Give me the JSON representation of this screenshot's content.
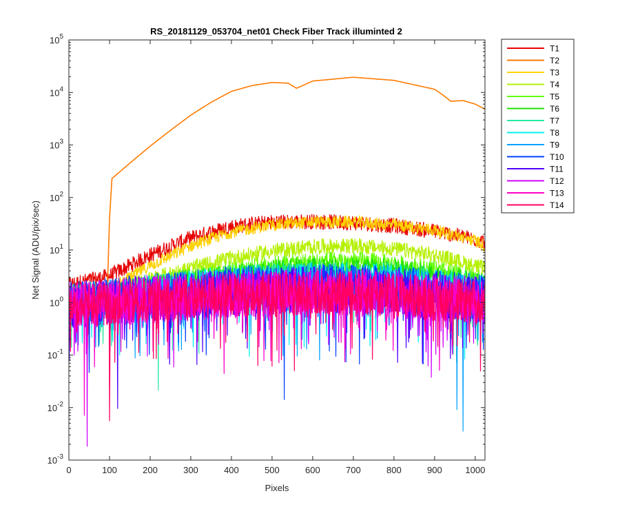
{
  "chart_data": {
    "type": "line",
    "title": "RS_20181129_053704_net01   Check Fiber     Track illuminted 2",
    "xlabel": "Pixels",
    "ylabel": "Net Signal (ADU/pix/sec)",
    "xlim": [
      0,
      1024
    ],
    "ylim": [
      0.001,
      100000
    ],
    "yscale": "log",
    "grid": false,
    "legend_position": "outside-right-top",
    "x_ticks": [
      0,
      100,
      200,
      300,
      400,
      500,
      600,
      700,
      800,
      900,
      1000
    ],
    "y_tick_exponents": [
      -3,
      -2,
      -1,
      0,
      1,
      2,
      3,
      4,
      5
    ],
    "y_tick_base": "10",
    "series": [
      {
        "name": "T1",
        "color": "#e60000",
        "profile": [
          [
            0,
            2.2
          ],
          [
            100,
            3.2
          ],
          [
            200,
            8
          ],
          [
            300,
            17
          ],
          [
            400,
            28
          ],
          [
            500,
            34
          ],
          [
            600,
            35
          ],
          [
            700,
            33
          ],
          [
            800,
            29
          ],
          [
            900,
            23
          ],
          [
            1000,
            16
          ],
          [
            1024,
            14
          ]
        ],
        "noise": 0.15,
        "floor": 2.2
      },
      {
        "name": "T2",
        "color": "#ff7a00",
        "profile": [
          [
            0,
            1.2
          ],
          [
            94,
            1.2
          ],
          [
            100,
            40
          ],
          [
            106,
            230
          ],
          [
            150,
            450
          ],
          [
            200,
            950
          ],
          [
            250,
            1900
          ],
          [
            300,
            3700
          ],
          [
            350,
            6500
          ],
          [
            400,
            10500
          ],
          [
            450,
            13500
          ],
          [
            500,
            15500
          ],
          [
            540,
            15000
          ],
          [
            560,
            12000
          ],
          [
            600,
            16500
          ],
          [
            700,
            19500
          ],
          [
            800,
            17000
          ],
          [
            900,
            11500
          ],
          [
            920,
            9000
          ],
          [
            940,
            6800
          ],
          [
            970,
            7000
          ],
          [
            1000,
            6000
          ],
          [
            1024,
            4800
          ]
        ],
        "noise": 0.0,
        "floor": 0
      },
      {
        "name": "T3",
        "color": "#ffd200",
        "profile": [
          [
            0,
            1.6
          ],
          [
            100,
            1.8
          ],
          [
            200,
            5
          ],
          [
            300,
            12
          ],
          [
            400,
            22
          ],
          [
            500,
            30
          ],
          [
            600,
            34
          ],
          [
            700,
            34
          ],
          [
            800,
            30
          ],
          [
            900,
            24
          ],
          [
            1000,
            15
          ],
          [
            1024,
            12
          ]
        ],
        "noise": 0.12,
        "floor": 1.6
      },
      {
        "name": "T4",
        "color": "#b5f000",
        "profile": [
          [
            0,
            1.4
          ],
          [
            100,
            1.6
          ],
          [
            200,
            2.8
          ],
          [
            300,
            4.5
          ],
          [
            400,
            7
          ],
          [
            500,
            9.5
          ],
          [
            600,
            11.5
          ],
          [
            700,
            12
          ],
          [
            800,
            10.5
          ],
          [
            900,
            8
          ],
          [
            1000,
            5
          ],
          [
            1024,
            4.4
          ]
        ],
        "noise": 0.15,
        "floor": 1.4
      },
      {
        "name": "T5",
        "color": "#60ff00",
        "profile": [
          [
            0,
            1.3
          ],
          [
            100,
            1.5
          ],
          [
            200,
            2.2
          ],
          [
            300,
            3
          ],
          [
            400,
            4
          ],
          [
            500,
            5
          ],
          [
            600,
            5.8
          ],
          [
            700,
            6
          ],
          [
            800,
            5.2
          ],
          [
            900,
            4
          ],
          [
            1000,
            2.8
          ],
          [
            1024,
            2.5
          ]
        ],
        "noise": 0.2,
        "floor": 1.3
      },
      {
        "name": "T6",
        "color": "#1de000",
        "profile": [
          [
            0,
            1.2
          ],
          [
            100,
            1.4
          ],
          [
            200,
            2
          ],
          [
            300,
            2.6
          ],
          [
            400,
            3.3
          ],
          [
            500,
            4
          ],
          [
            600,
            4.5
          ],
          [
            700,
            4.6
          ],
          [
            800,
            4.2
          ],
          [
            900,
            3.3
          ],
          [
            1000,
            2.4
          ],
          [
            1024,
            2.2
          ]
        ],
        "noise": 0.22,
        "floor": 1.2
      },
      {
        "name": "T7",
        "color": "#26e8a0",
        "profile": [
          [
            0,
            1.1
          ],
          [
            200,
            1.7
          ],
          [
            400,
            2.7
          ],
          [
            600,
            3.3
          ],
          [
            800,
            3
          ],
          [
            1024,
            1.8
          ]
        ],
        "noise": 0.3,
        "floor": 1.1
      },
      {
        "name": "T8",
        "color": "#00f0f0",
        "profile": [
          [
            0,
            1.0
          ],
          [
            200,
            1.5
          ],
          [
            400,
            2.3
          ],
          [
            600,
            2.7
          ],
          [
            800,
            2.5
          ],
          [
            1024,
            1.5
          ]
        ],
        "noise": 0.35,
        "floor": 1.0
      },
      {
        "name": "T9",
        "color": "#00a0ff",
        "profile": [
          [
            0,
            1.0
          ],
          [
            200,
            1.4
          ],
          [
            400,
            2
          ],
          [
            600,
            2.3
          ],
          [
            800,
            2.1
          ],
          [
            1024,
            1.3
          ]
        ],
        "noise": 0.4,
        "floor": 1.0
      },
      {
        "name": "T10",
        "color": "#0040ff",
        "profile": [
          [
            0,
            0.9
          ],
          [
            200,
            1.3
          ],
          [
            400,
            1.8
          ],
          [
            600,
            2
          ],
          [
            800,
            1.8
          ],
          [
            1024,
            1.2
          ]
        ],
        "noise": 0.45,
        "floor": 0.9
      },
      {
        "name": "T11",
        "color": "#4d00ff",
        "profile": [
          [
            0,
            0.9
          ],
          [
            200,
            1.2
          ],
          [
            400,
            1.6
          ],
          [
            600,
            1.8
          ],
          [
            800,
            1.6
          ],
          [
            1024,
            1.1
          ]
        ],
        "noise": 0.45,
        "floor": 0.9
      },
      {
        "name": "T12",
        "color": "#d000ff",
        "profile": [
          [
            0,
            0.9
          ],
          [
            200,
            1.2
          ],
          [
            400,
            1.5
          ],
          [
            600,
            1.7
          ],
          [
            800,
            1.5
          ],
          [
            1024,
            1.1
          ]
        ],
        "noise": 0.45,
        "floor": 0.9
      },
      {
        "name": "T13",
        "color": "#ff00c8",
        "profile": [
          [
            0,
            0.9
          ],
          [
            200,
            1.1
          ],
          [
            400,
            1.4
          ],
          [
            600,
            1.6
          ],
          [
            800,
            1.4
          ],
          [
            1024,
            1.0
          ]
        ],
        "noise": 0.45,
        "floor": 0.9
      },
      {
        "name": "T14",
        "color": "#ff0060",
        "profile": [
          [
            0,
            0.9
          ],
          [
            200,
            1.1
          ],
          [
            400,
            1.4
          ],
          [
            600,
            1.5
          ],
          [
            800,
            1.4
          ],
          [
            1024,
            1.0
          ]
        ],
        "noise": 0.42,
        "floor": 0.9
      }
    ],
    "dips": [
      {
        "series": "T10",
        "x": 530,
        "y": 0.014
      },
      {
        "series": "T9",
        "x": 970,
        "y": 0.0035
      },
      {
        "series": "T12",
        "x": 45,
        "y": 0.0018
      },
      {
        "series": "T13",
        "x": 38,
        "y": 0.007
      },
      {
        "series": "T14",
        "x": 100,
        "y": 0.0055
      },
      {
        "series": "T11",
        "x": 120,
        "y": 0.0095
      },
      {
        "series": "T7",
        "x": 220,
        "y": 0.021
      },
      {
        "series": "T9",
        "x": 955,
        "y": 0.009
      }
    ]
  }
}
